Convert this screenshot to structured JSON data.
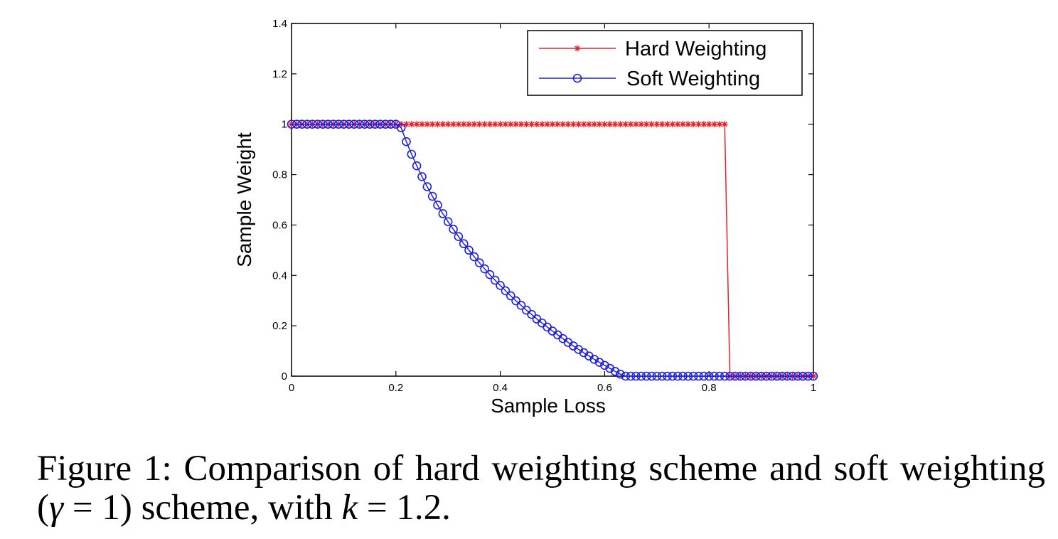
{
  "chart_data": {
    "type": "line",
    "xlabel": "Sample Loss",
    "ylabel": "Sample Weight",
    "xlim": [
      0,
      1
    ],
    "ylim": [
      0,
      1.4
    ],
    "x_ticks": [
      "0",
      "0.2",
      "0.4",
      "0.6",
      "0.8",
      "1"
    ],
    "y_ticks": [
      "0",
      "0.2",
      "0.4",
      "0.6",
      "0.8",
      "1",
      "1.2",
      "1.4"
    ],
    "grid": false,
    "legend_position": "top-right",
    "series": [
      {
        "name": "Hard Weighting",
        "color": "#e8202a",
        "marker": "asterisk",
        "x": [
          0,
          0.01,
          0.02,
          0.03,
          0.04,
          0.05,
          0.06,
          0.07,
          0.08,
          0.09,
          0.1,
          0.11,
          0.12,
          0.13,
          0.14,
          0.15,
          0.16,
          0.17,
          0.18,
          0.19,
          0.2,
          0.21,
          0.22,
          0.23,
          0.24,
          0.25,
          0.26,
          0.27,
          0.28,
          0.29,
          0.3,
          0.31,
          0.32,
          0.33,
          0.34,
          0.35,
          0.36,
          0.37,
          0.38,
          0.39,
          0.4,
          0.41,
          0.42,
          0.43,
          0.44,
          0.45,
          0.46,
          0.47,
          0.48,
          0.49,
          0.5,
          0.51,
          0.52,
          0.53,
          0.54,
          0.55,
          0.56,
          0.57,
          0.58,
          0.59,
          0.6,
          0.61,
          0.62,
          0.63,
          0.64,
          0.65,
          0.66,
          0.67,
          0.68,
          0.69,
          0.7,
          0.71,
          0.72,
          0.73,
          0.74,
          0.75,
          0.76,
          0.77,
          0.78,
          0.79,
          0.8,
          0.81,
          0.82,
          0.83,
          0.84,
          0.85,
          0.86,
          0.87,
          0.88,
          0.89,
          0.9,
          0.91,
          0.92,
          0.93,
          0.94,
          0.95,
          0.96,
          0.97,
          0.98,
          0.99,
          1
        ],
        "values": [
          1,
          1,
          1,
          1,
          1,
          1,
          1,
          1,
          1,
          1,
          1,
          1,
          1,
          1,
          1,
          1,
          1,
          1,
          1,
          1,
          1,
          1,
          1,
          1,
          1,
          1,
          1,
          1,
          1,
          1,
          1,
          1,
          1,
          1,
          1,
          1,
          1,
          1,
          1,
          1,
          1,
          1,
          1,
          1,
          1,
          1,
          1,
          1,
          1,
          1,
          1,
          1,
          1,
          1,
          1,
          1,
          1,
          1,
          1,
          1,
          1,
          1,
          1,
          1,
          1,
          1,
          1,
          1,
          1,
          1,
          1,
          1,
          1,
          1,
          1,
          1,
          1,
          1,
          1,
          1,
          1,
          1,
          1,
          1,
          0,
          0,
          0,
          0,
          0,
          0,
          0,
          0,
          0,
          0,
          0,
          0,
          0,
          0,
          0,
          0,
          0
        ]
      },
      {
        "name": "Soft Weighting",
        "color": "#1f1fe0",
        "marker": "circle",
        "x": [
          0,
          0.01,
          0.02,
          0.03,
          0.04,
          0.05,
          0.06,
          0.07,
          0.08,
          0.09,
          0.1,
          0.11,
          0.12,
          0.13,
          0.14,
          0.15,
          0.16,
          0.17,
          0.18,
          0.19,
          0.2,
          0.21,
          0.22,
          0.23,
          0.24,
          0.25,
          0.26,
          0.27,
          0.28,
          0.29,
          0.3,
          0.31,
          0.32,
          0.33,
          0.34,
          0.35,
          0.36,
          0.37,
          0.38,
          0.39,
          0.4,
          0.41,
          0.42,
          0.43,
          0.44,
          0.45,
          0.46,
          0.47,
          0.48,
          0.49,
          0.5,
          0.51,
          0.52,
          0.53,
          0.54,
          0.55,
          0.56,
          0.57,
          0.58,
          0.59,
          0.6,
          0.61,
          0.62,
          0.63,
          0.64,
          0.65,
          0.66,
          0.67,
          0.68,
          0.69,
          0.7,
          0.71,
          0.72,
          0.73,
          0.74,
          0.75,
          0.76,
          0.77,
          0.78,
          0.79,
          0.8,
          0.81,
          0.82,
          0.83,
          0.84,
          0.85,
          0.86,
          0.87,
          0.88,
          0.89,
          0.9,
          0.91,
          0.92,
          0.93,
          0.94,
          0.95,
          0.96,
          0.97,
          0.98,
          0.99,
          1
        ],
        "values": [
          1,
          1,
          1,
          1,
          1,
          1,
          1,
          1,
          1,
          1,
          1,
          1,
          1,
          1,
          1,
          1,
          1,
          1,
          1,
          1,
          1,
          0.986,
          0.931,
          0.881,
          0.835,
          0.792,
          0.752,
          0.714,
          0.679,
          0.645,
          0.613,
          0.583,
          0.554,
          0.526,
          0.5,
          0.474,
          0.45,
          0.426,
          0.403,
          0.381,
          0.36,
          0.339,
          0.319,
          0.299,
          0.281,
          0.262,
          0.245,
          0.227,
          0.211,
          0.195,
          0.179,
          0.164,
          0.149,
          0.134,
          0.12,
          0.106,
          0.093,
          0.08,
          0.067,
          0.055,
          0.043,
          0.031,
          0.019,
          0.008,
          0,
          0,
          0,
          0,
          0,
          0,
          0,
          0,
          0,
          0,
          0,
          0,
          0,
          0,
          0,
          0,
          0,
          0,
          0,
          0,
          0,
          0,
          0,
          0,
          0,
          0,
          0,
          0,
          0,
          0,
          0,
          0,
          0,
          0,
          0,
          0,
          0
        ]
      }
    ]
  },
  "caption": {
    "prefix": "Figure 1: Comparison of hard weighting scheme and soft weighting (",
    "gamma_symbol": "γ",
    "gamma_eq": " = 1) scheme, with ",
    "k_symbol": "k",
    "k_eq": " = 1.2."
  }
}
